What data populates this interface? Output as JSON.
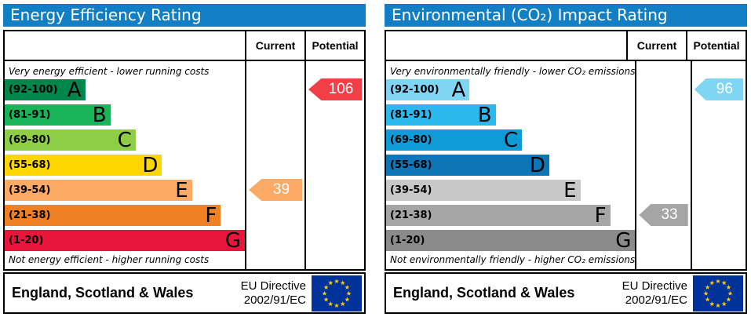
{
  "colors": {
    "panel_header_bg": "#127fc5",
    "panel_header_text": "#ffffff",
    "flag_bg": "#003399",
    "flag_star": "#ffcc00"
  },
  "chart_data": [
    {
      "type": "bar",
      "id": "energy-efficiency-rating",
      "title": "Energy Efficiency Rating",
      "columns": {
        "current": "Current",
        "potential": "Potential"
      },
      "top_note": "Very energy efficient - lower running costs",
      "bottom_note": "Not energy efficient - higher running costs",
      "bands": [
        {
          "letter": "A",
          "range_label": "(92-100)",
          "min": 92,
          "max": 100,
          "color": "#00854a",
          "width_pct": 33.5
        },
        {
          "letter": "B",
          "range_label": "(81-91)",
          "min": 81,
          "max": 91,
          "color": "#19b459",
          "width_pct": 44
        },
        {
          "letter": "C",
          "range_label": "(69-80)",
          "min": 69,
          "max": 80,
          "color": "#8dce46",
          "width_pct": 54.5
        },
        {
          "letter": "D",
          "range_label": "(55-68)",
          "min": 55,
          "max": 68,
          "color": "#ffd500",
          "width_pct": 65.5
        },
        {
          "letter": "E",
          "range_label": "(39-54)",
          "min": 39,
          "max": 54,
          "color": "#fcaa65",
          "width_pct": 78
        },
        {
          "letter": "F",
          "range_label": "(21-38)",
          "min": 21,
          "max": 38,
          "color": "#ef8023",
          "width_pct": 90
        },
        {
          "letter": "G",
          "range_label": "(1-20)",
          "min": 1,
          "max": 20,
          "color": "#e9153b",
          "width_pct": 100
        }
      ],
      "current": {
        "value": 39,
        "color": "#fcaa65"
      },
      "potential": {
        "value": 106,
        "color": "#f23f47"
      },
      "footer": {
        "region": "England, Scotland & Wales",
        "directive_line1": "EU Directive",
        "directive_line2": "2002/91/EC"
      }
    },
    {
      "type": "bar",
      "id": "environmental-co2-impact-rating",
      "title": "Environmental (CO₂) Impact Rating",
      "columns": {
        "current": "Current",
        "potential": "Potential"
      },
      "top_note": "Very environmentally friendly - lower CO₂ emissions",
      "bottom_note": "Not environmentally friendly - higher CO₂ emissions",
      "bands": [
        {
          "letter": "A",
          "range_label": "(92-100)",
          "min": 92,
          "max": 100,
          "color": "#7fd5f4",
          "width_pct": 33.5
        },
        {
          "letter": "B",
          "range_label": "(81-91)",
          "min": 81,
          "max": 91,
          "color": "#2cb8ec",
          "width_pct": 44
        },
        {
          "letter": "C",
          "range_label": "(69-80)",
          "min": 69,
          "max": 80,
          "color": "#0f9ad8",
          "width_pct": 54.5
        },
        {
          "letter": "D",
          "range_label": "(55-68)",
          "min": 55,
          "max": 68,
          "color": "#0e76b6",
          "width_pct": 65.5
        },
        {
          "letter": "E",
          "range_label": "(39-54)",
          "min": 39,
          "max": 54,
          "color": "#c8c8c8",
          "width_pct": 78
        },
        {
          "letter": "F",
          "range_label": "(21-38)",
          "min": 21,
          "max": 38,
          "color": "#a5a5a5",
          "width_pct": 90
        },
        {
          "letter": "G",
          "range_label": "(1-20)",
          "min": 1,
          "max": 20,
          "color": "#8b8b8b",
          "width_pct": 100
        }
      ],
      "current": {
        "value": 33,
        "color": "#a5a5a5"
      },
      "potential": {
        "value": 96,
        "color": "#7fd5f4"
      },
      "footer": {
        "region": "England, Scotland & Wales",
        "directive_line1": "EU Directive",
        "directive_line2": "2002/91/EC"
      }
    }
  ]
}
